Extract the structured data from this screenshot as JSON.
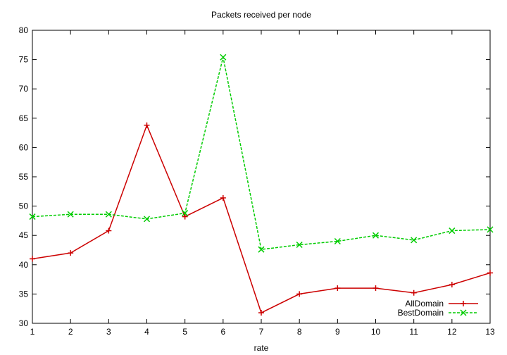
{
  "chart_data": {
    "type": "line",
    "title": "Packets received per node",
    "xlabel": "rate",
    "ylabel": "",
    "xlim": [
      1,
      13
    ],
    "ylim": [
      30,
      80
    ],
    "x": [
      1,
      2,
      3,
      4,
      5,
      6,
      7,
      8,
      9,
      10,
      11,
      12,
      13
    ],
    "xticks": [
      1,
      2,
      3,
      4,
      5,
      6,
      7,
      8,
      9,
      10,
      11,
      12,
      13
    ],
    "yticks": [
      30,
      35,
      40,
      45,
      50,
      55,
      60,
      65,
      70,
      75,
      80
    ],
    "grid": false,
    "legend_position": "bottom-right",
    "series": [
      {
        "name": "AllDomain",
        "color": "#cc0000",
        "marker": "plus",
        "dash": "solid",
        "values": [
          41.0,
          42.0,
          45.8,
          63.8,
          48.2,
          51.4,
          31.8,
          35.0,
          36.0,
          36.0,
          35.2,
          36.6,
          38.6
        ]
      },
      {
        "name": "BestDomain",
        "color": "#00cc00",
        "marker": "cross",
        "dash": "dashed",
        "values": [
          48.2,
          48.6,
          48.6,
          47.8,
          48.8,
          75.4,
          42.6,
          43.4,
          44.0,
          45.0,
          44.2,
          45.8,
          46.0
        ]
      }
    ]
  }
}
